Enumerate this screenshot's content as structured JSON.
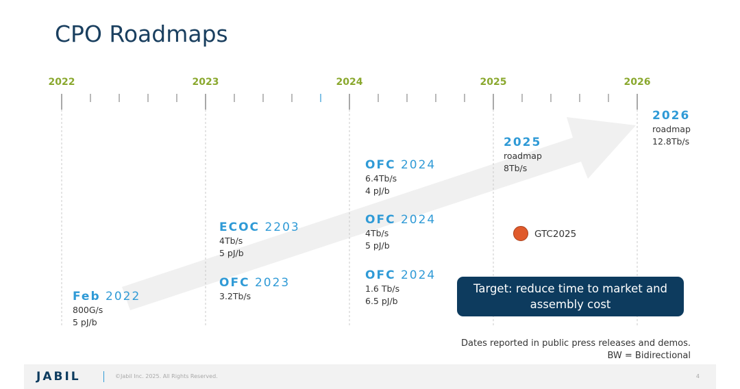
{
  "title": "CPO Roadmaps",
  "years": [
    "2022",
    "2023",
    "2024",
    "2025",
    "2026"
  ],
  "events": [
    {
      "keyword": "Feb",
      "year": "2022",
      "lines": [
        "800G/s",
        "5 pJ/b"
      ]
    },
    {
      "keyword": "OFC",
      "year": "2023",
      "lines": [
        "3.2Tb/s"
      ]
    },
    {
      "keyword": "ECOC",
      "year": "2203",
      "lines": [
        "4Tb/s",
        "5 pJ/b"
      ]
    },
    {
      "keyword": "OFC",
      "year": "2024",
      "lines": [
        "1.6 Tb/s",
        "6.5 pJ/b"
      ]
    },
    {
      "keyword": "OFC",
      "year": "2024",
      "lines": [
        "4Tb/s",
        "5 pJ/b"
      ]
    },
    {
      "keyword": "OFC",
      "year": "2024",
      "lines": [
        "6.4Tb/s",
        "4 pJ/b"
      ]
    },
    {
      "keyword": "",
      "year": "2025",
      "lines": [
        "roadmap",
        "8Tb/s"
      ]
    },
    {
      "keyword": "",
      "year": "2026",
      "lines": [
        "roadmap",
        "12.8Tb/s"
      ]
    }
  ],
  "marker": {
    "label": "GTC2025",
    "color": "#e05a2b"
  },
  "target_box": "Target: reduce time to market and assembly cost",
  "footnote": [
    "Dates reported in public press releases and demos.",
    "BW = Bidirectional"
  ],
  "footer": {
    "logo": "JABIL",
    "copyright": "©Jabil Inc. 2025. All Rights Reserved.",
    "page": "4"
  },
  "colors": {
    "title": "#1a3f5f",
    "year": "#8aa82e",
    "event": "#2f9ad6",
    "dark_blue": "#0d3b5e",
    "arrow": "#f0f0f0"
  }
}
